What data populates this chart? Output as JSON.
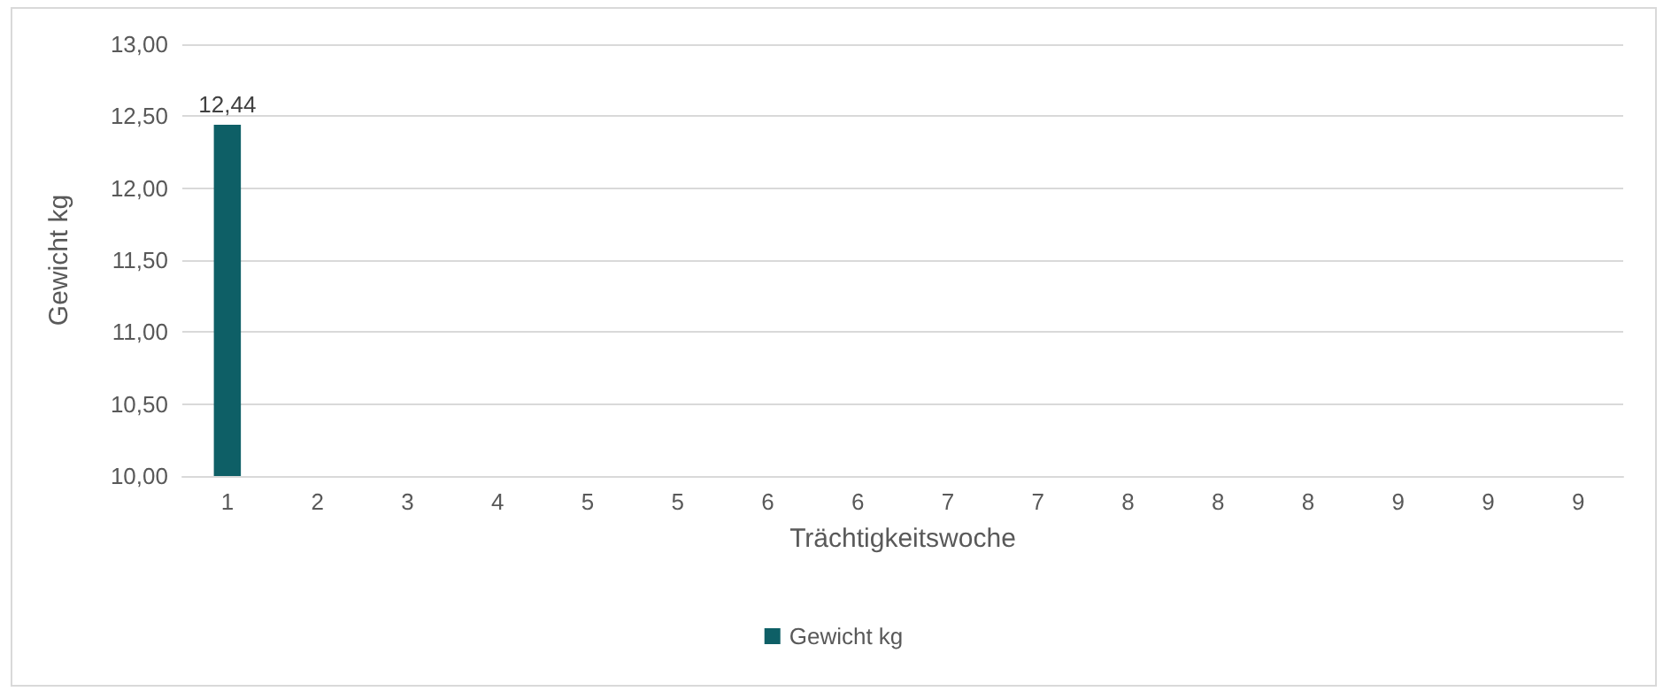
{
  "chart_data": {
    "type": "bar",
    "xlabel": "Trächtigkeitswoche",
    "ylabel": "Gewicht kg",
    "categories": [
      "1",
      "2",
      "3",
      "4",
      "5",
      "5",
      "6",
      "6",
      "7",
      "7",
      "8",
      "8",
      "8",
      "9",
      "9",
      "9"
    ],
    "series": [
      {
        "name": "Gewicht kg",
        "color": "#0e5f66",
        "values": [
          12.44,
          null,
          null,
          null,
          null,
          null,
          null,
          null,
          null,
          null,
          null,
          null,
          null,
          null,
          null,
          null
        ],
        "value_labels": [
          "12,44",
          null,
          null,
          null,
          null,
          null,
          null,
          null,
          null,
          null,
          null,
          null,
          null,
          null,
          null,
          null
        ]
      }
    ],
    "ylim": [
      10,
      13
    ],
    "yticks": [
      {
        "value": 10,
        "label": "10,00"
      },
      {
        "value": 10.5,
        "label": "10,50"
      },
      {
        "value": 11,
        "label": "11,00"
      },
      {
        "value": 11.5,
        "label": "11,50"
      },
      {
        "value": 12,
        "label": "12,00"
      },
      {
        "value": 12.5,
        "label": "12,50"
      },
      {
        "value": 13,
        "label": "13,00"
      }
    ],
    "grid": "y",
    "legend": "bottom"
  }
}
